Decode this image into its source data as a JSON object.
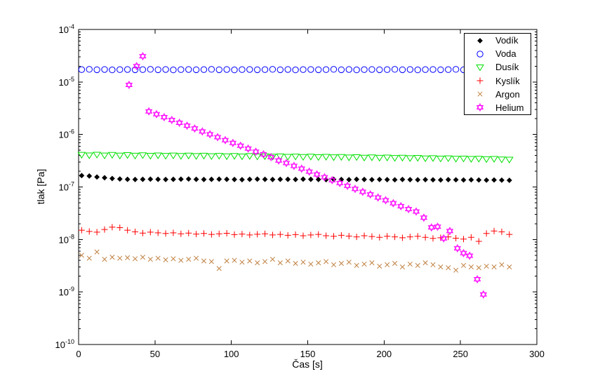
{
  "chart_data": {
    "type": "scatter",
    "title": "",
    "xlabel": "Čas [s]",
    "ylabel": "tlak [Pa]",
    "xlim": [
      0,
      300
    ],
    "x_ticks": [
      0,
      50,
      100,
      150,
      200,
      250,
      300
    ],
    "y_scale": "log",
    "ylim_exp": [
      -10,
      -4
    ],
    "y_tick_exponents": [
      -4,
      -5,
      -6,
      -7,
      -8,
      -9,
      -10
    ],
    "grid": false,
    "legend_position": "northeast",
    "axis_color": "#000000",
    "background_color": "#ffffff",
    "t": [
      2,
      7,
      12,
      17,
      22,
      27,
      32,
      37,
      42,
      47,
      52,
      57,
      62,
      67,
      72,
      77,
      82,
      87,
      92,
      97,
      102,
      107,
      112,
      117,
      122,
      127,
      132,
      137,
      142,
      147,
      152,
      157,
      162,
      167,
      172,
      177,
      182,
      187,
      192,
      197,
      202,
      207,
      212,
      217,
      222,
      227,
      232,
      237,
      242,
      247,
      252,
      257,
      262,
      267,
      272,
      277,
      282
    ],
    "series": [
      {
        "name": "Vodík",
        "marker": "diamond",
        "color": "#000000",
        "filled": true,
        "p_scale": 1e-07,
        "p": [
          1.65,
          1.62,
          1.55,
          1.5,
          1.45,
          1.42,
          1.4,
          1.39,
          1.4,
          1.41,
          1.4,
          1.39,
          1.4,
          1.41,
          1.42,
          1.4,
          1.39,
          1.4,
          1.41,
          1.4,
          1.39,
          1.38,
          1.4,
          1.41,
          1.4,
          1.39,
          1.4,
          1.4,
          1.39,
          1.41,
          1.4,
          1.39,
          1.38,
          1.4,
          1.39,
          1.38,
          1.4,
          1.39,
          1.38,
          1.39,
          1.38,
          1.37,
          1.39,
          1.38,
          1.37,
          1.38,
          1.37,
          1.36,
          1.38,
          1.37,
          1.36,
          1.37,
          1.36,
          1.35,
          1.36,
          1.35,
          1.34
        ]
      },
      {
        "name": "Voda",
        "marker": "circle",
        "color": "#0000ff",
        "filled": false,
        "p_scale": 1e-05,
        "p": [
          1.72,
          1.74,
          1.71,
          1.73,
          1.7,
          1.72,
          1.73,
          1.71,
          1.72,
          1.74,
          1.71,
          1.73,
          1.7,
          1.72,
          1.73,
          1.71,
          1.72,
          1.74,
          1.71,
          1.73,
          1.7,
          1.72,
          1.73,
          1.71,
          1.72,
          1.74,
          1.71,
          1.73,
          1.7,
          1.72,
          1.73,
          1.71,
          1.72,
          1.74,
          1.71,
          1.73,
          1.7,
          1.72,
          1.73,
          1.71,
          1.72,
          1.74,
          1.71,
          1.73,
          1.7,
          1.72,
          1.73,
          1.71,
          1.72,
          1.74,
          1.71,
          1.73,
          1.7,
          1.72,
          1.73,
          1.71,
          1.7
        ]
      },
      {
        "name": "Dusík",
        "marker": "triangle-down",
        "color": "#00e000",
        "filled": false,
        "p_scale": 1e-07,
        "p": [
          4.1,
          4.0,
          4.12,
          3.98,
          4.08,
          3.96,
          4.05,
          3.95,
          4.03,
          3.93,
          4.0,
          3.92,
          3.98,
          3.9,
          3.96,
          3.88,
          3.94,
          3.86,
          3.92,
          3.84,
          3.9,
          3.82,
          3.88,
          3.8,
          3.85,
          3.78,
          3.83,
          3.76,
          3.8,
          3.73,
          3.78,
          3.7,
          3.75,
          3.68,
          3.72,
          3.65,
          3.7,
          3.62,
          3.67,
          3.6,
          3.64,
          3.57,
          3.61,
          3.54,
          3.58,
          3.51,
          3.55,
          3.48,
          3.52,
          3.45,
          3.48,
          3.42,
          3.45,
          3.38,
          3.42,
          3.35,
          3.32
        ]
      },
      {
        "name": "Kyslík",
        "marker": "plus",
        "color": "#ff0000",
        "filled": false,
        "p_scale": 1e-08,
        "p": [
          1.5,
          1.42,
          1.38,
          1.55,
          1.72,
          1.68,
          1.5,
          1.4,
          1.32,
          1.38,
          1.34,
          1.3,
          1.34,
          1.28,
          1.32,
          1.27,
          1.3,
          1.25,
          1.28,
          1.31,
          1.24,
          1.27,
          1.22,
          1.26,
          1.28,
          1.22,
          1.25,
          1.2,
          1.24,
          1.18,
          1.22,
          1.25,
          1.18,
          1.15,
          1.2,
          1.16,
          1.12,
          1.18,
          1.14,
          1.1,
          1.15,
          1.12,
          1.08,
          1.12,
          1.15,
          1.1,
          1.05,
          1.08,
          1.12,
          1.06,
          1.02,
          1.1,
          0.92,
          1.3,
          1.45,
          1.4,
          1.25
        ]
      },
      {
        "name": "Argon",
        "marker": "x",
        "color": "#c08040",
        "filled": false,
        "p_scale": 1e-09,
        "p": [
          5.0,
          4.4,
          5.8,
          4.2,
          4.6,
          4.4,
          4.5,
          4.3,
          4.6,
          4.2,
          4.4,
          4.1,
          4.3,
          4.0,
          4.2,
          4.4,
          3.9,
          3.8,
          2.8,
          3.9,
          4.0,
          3.7,
          3.9,
          3.6,
          3.8,
          4.2,
          3.6,
          3.9,
          3.5,
          3.7,
          3.4,
          3.6,
          3.8,
          3.3,
          3.5,
          3.7,
          3.2,
          3.4,
          3.6,
          3.1,
          3.3,
          3.5,
          3.0,
          3.4,
          3.2,
          3.6,
          3.3,
          3.0,
          2.9,
          2.6,
          3.2,
          3.0,
          2.9,
          3.1,
          3.0,
          3.3,
          3.0
        ]
      },
      {
        "name": "Helium",
        "marker": "hexagram",
        "color": "#ff00ff",
        "filled": false,
        "p_scale": 1,
        "t": [
          33,
          38,
          42,
          46,
          51,
          56,
          61,
          66,
          71,
          76,
          81,
          86,
          91,
          96,
          101,
          106,
          111,
          116,
          121,
          126,
          131,
          136,
          141,
          146,
          151,
          156,
          161,
          166,
          171,
          176,
          181,
          186,
          191,
          196,
          201,
          206,
          211,
          216,
          221,
          226,
          231,
          235,
          239,
          243,
          248,
          252,
          256,
          261,
          265
        ],
        "p": [
          8.8e-06,
          2e-05,
          3.1e-05,
          2.75e-06,
          2.43e-06,
          2.14e-06,
          1.89e-06,
          1.67e-06,
          1.47e-06,
          1.3e-06,
          1.14e-06,
          1.01e-06,
          8.9e-07,
          7.8e-07,
          6.9e-07,
          6.1e-07,
          5.4e-07,
          4.7e-07,
          4.2e-07,
          3.7e-07,
          3.2e-07,
          2.86e-07,
          2.52e-07,
          2.23e-07,
          1.96e-07,
          1.73e-07,
          1.53e-07,
          1.35e-07,
          1.19e-07,
          1.05e-07,
          9.2e-08,
          8.1e-08,
          7.2e-08,
          6.3e-08,
          5.6e-08,
          4.9e-08,
          4.3e-08,
          3.8e-08,
          3.4e-08,
          2.6e-08,
          1.7e-08,
          1.75e-08,
          1.05e-08,
          1.45e-08,
          6.8e-09,
          5.5e-09,
          4.9e-09,
          1.75e-09,
          9e-10
        ]
      }
    ]
  }
}
